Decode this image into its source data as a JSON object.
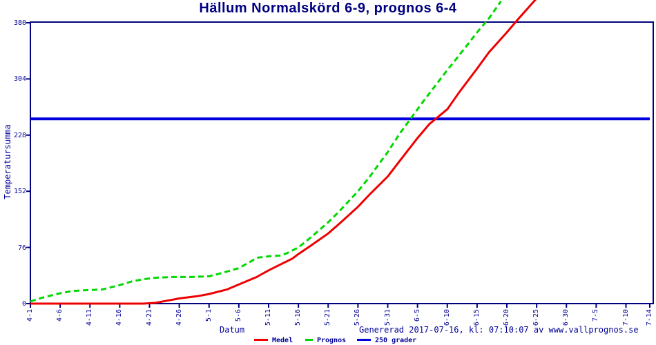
{
  "title": "Hällum Normalskörd 6-9, prognos 6-4",
  "y_axis": {
    "label": "Temperatursumma",
    "ticks": [
      0,
      76,
      152,
      228,
      304,
      380
    ]
  },
  "x_axis": {
    "label": "Datum",
    "ticks": [
      {
        "day": 0,
        "label": "4-1"
      },
      {
        "day": 5,
        "label": "4-6"
      },
      {
        "day": 10,
        "label": "4-11"
      },
      {
        "day": 15,
        "label": "4-16"
      },
      {
        "day": 20,
        "label": "4-21"
      },
      {
        "day": 25,
        "label": "4-26"
      },
      {
        "day": 30,
        "label": "5-1"
      },
      {
        "day": 35,
        "label": "5-6"
      },
      {
        "day": 40,
        "label": "5-11"
      },
      {
        "day": 45,
        "label": "5-16"
      },
      {
        "day": 50,
        "label": "5-21"
      },
      {
        "day": 55,
        "label": "5-26"
      },
      {
        "day": 60,
        "label": "5-31"
      },
      {
        "day": 65,
        "label": "6-5"
      },
      {
        "day": 70,
        "label": "6-10"
      },
      {
        "day": 75,
        "label": "6-15"
      },
      {
        "day": 80,
        "label": "6-20"
      },
      {
        "day": 85,
        "label": "6-25"
      },
      {
        "day": 90,
        "label": "6-30"
      },
      {
        "day": 95,
        "label": "7-5"
      },
      {
        "day": 100,
        "label": "7-10"
      },
      {
        "day": 104,
        "label": "7-14"
      }
    ]
  },
  "footer": {
    "generated": "Genererad 2017-07-16, kl: 07:10:07 av www.vallprognos.se"
  },
  "legend": [
    {
      "label": "Medel",
      "color": "#ee0000"
    },
    {
      "label": "Prognos",
      "color": "#00d800"
    },
    {
      "label": "250 grader",
      "color": "#0000dd"
    }
  ],
  "chart_data": {
    "type": "line",
    "title": "Hällum Normalskörd 6-9, prognos 6-4",
    "xlabel": "Datum",
    "ylabel": "Temperatursumma",
    "ylim": [
      0,
      380
    ],
    "y_ticks": [
      0,
      76,
      152,
      228,
      304,
      380
    ],
    "x_unit": "days after 4-1 (month-day dates)",
    "x_tick_days": [
      0,
      5,
      10,
      15,
      20,
      25,
      30,
      35,
      40,
      45,
      50,
      55,
      60,
      65,
      70,
      75,
      80,
      85,
      90,
      95,
      100,
      104
    ],
    "x_tick_labels": [
      "4-1",
      "4-6",
      "4-11",
      "4-16",
      "4-21",
      "4-26",
      "5-1",
      "5-6",
      "5-11",
      "5-16",
      "5-21",
      "5-26",
      "5-31",
      "6-5",
      "6-10",
      "6-15",
      "6-20",
      "6-25",
      "6-30",
      "7-5",
      "7-10",
      "7-14"
    ],
    "grid": false,
    "legend_position": "bottom",
    "threshold_line": {
      "name": "250 grader",
      "value": 250,
      "color": "#0000dd",
      "x_span_days": [
        0,
        104
      ]
    },
    "annotations": {
      "medel_reaches_250": "6-9",
      "prognos_reaches_250": "6-4"
    },
    "series": [
      {
        "name": "Medel",
        "color": "#ee0000",
        "style": "solid",
        "points": [
          [
            0,
            0
          ],
          [
            5,
            0
          ],
          [
            10,
            0
          ],
          [
            15,
            0
          ],
          [
            19,
            0
          ],
          [
            21,
            1
          ],
          [
            23,
            4
          ],
          [
            25,
            7
          ],
          [
            28,
            10
          ],
          [
            30,
            13
          ],
          [
            33,
            19
          ],
          [
            35,
            26
          ],
          [
            38,
            36
          ],
          [
            40,
            45
          ],
          [
            42,
            53
          ],
          [
            44,
            61
          ],
          [
            45,
            67
          ],
          [
            47,
            78
          ],
          [
            50,
            95
          ],
          [
            52,
            109
          ],
          [
            55,
            131
          ],
          [
            57,
            148
          ],
          [
            60,
            172
          ],
          [
            62,
            193
          ],
          [
            65,
            224
          ],
          [
            67,
            243
          ],
          [
            70,
            263
          ],
          [
            72,
            286
          ],
          [
            75,
            318
          ],
          [
            77,
            340
          ],
          [
            80,
            367
          ],
          [
            82,
            386
          ],
          [
            85,
            413
          ]
        ]
      },
      {
        "name": "Prognos",
        "color": "#00d800",
        "style": "dashed",
        "points": [
          [
            0,
            3
          ],
          [
            2,
            8
          ],
          [
            5,
            14
          ],
          [
            7,
            17
          ],
          [
            9,
            18
          ],
          [
            12,
            19
          ],
          [
            15,
            25
          ],
          [
            17,
            30
          ],
          [
            19,
            33
          ],
          [
            21,
            35
          ],
          [
            24,
            36
          ],
          [
            27,
            36
          ],
          [
            30,
            37
          ],
          [
            32,
            41
          ],
          [
            35,
            48
          ],
          [
            37,
            57
          ],
          [
            38,
            62
          ],
          [
            40,
            64
          ],
          [
            42,
            65
          ],
          [
            43,
            68
          ],
          [
            45,
            76
          ],
          [
            47,
            89
          ],
          [
            50,
            110
          ],
          [
            52,
            126
          ],
          [
            55,
            152
          ],
          [
            57,
            172
          ],
          [
            60,
            205
          ],
          [
            62,
            230
          ],
          [
            64,
            252
          ],
          [
            66,
            274
          ],
          [
            68,
            295
          ],
          [
            70,
            316
          ],
          [
            72,
            336
          ],
          [
            75,
            367
          ],
          [
            77,
            386
          ],
          [
            79,
            409
          ]
        ]
      }
    ]
  }
}
